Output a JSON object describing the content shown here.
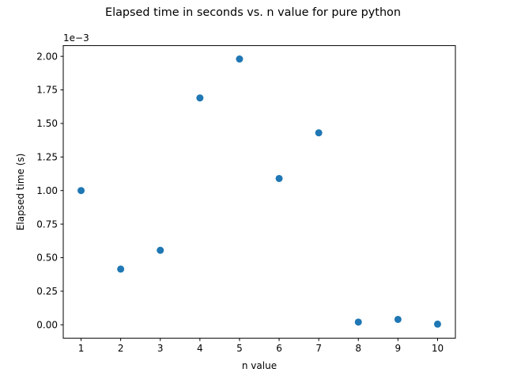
{
  "chart_data": {
    "type": "scatter",
    "title": "Elapsed time in seconds vs. n value for pure python",
    "xlabel": "n value",
    "ylabel": "Elapsed time (s)",
    "y_offset_label": "1e−3",
    "x": [
      1,
      2,
      3,
      4,
      5,
      6,
      7,
      8,
      9,
      10
    ],
    "y": [
      0.001,
      0.000415,
      0.000555,
      0.00169,
      0.00198,
      0.00109,
      0.00143,
      2e-05,
      4e-05,
      5e-06
    ],
    "xlim": [
      0.55,
      10.45
    ],
    "ylim": [
      -0.0001,
      0.00208
    ],
    "x_ticks": [
      1,
      2,
      3,
      4,
      5,
      6,
      7,
      8,
      9,
      10
    ],
    "x_tick_labels": [
      "1",
      "2",
      "3",
      "4",
      "5",
      "6",
      "7",
      "8",
      "9",
      "10"
    ],
    "y_ticks": [
      0,
      0.00025,
      0.0005,
      0.00075,
      0.001,
      0.00125,
      0.0015,
      0.00175,
      0.002
    ],
    "y_tick_labels": [
      "0.00",
      "0.25",
      "0.50",
      "0.75",
      "1.00",
      "1.25",
      "1.50",
      "1.75",
      "2.00"
    ],
    "grid": false,
    "legend": "none",
    "marker_color": "#1f77b4"
  }
}
